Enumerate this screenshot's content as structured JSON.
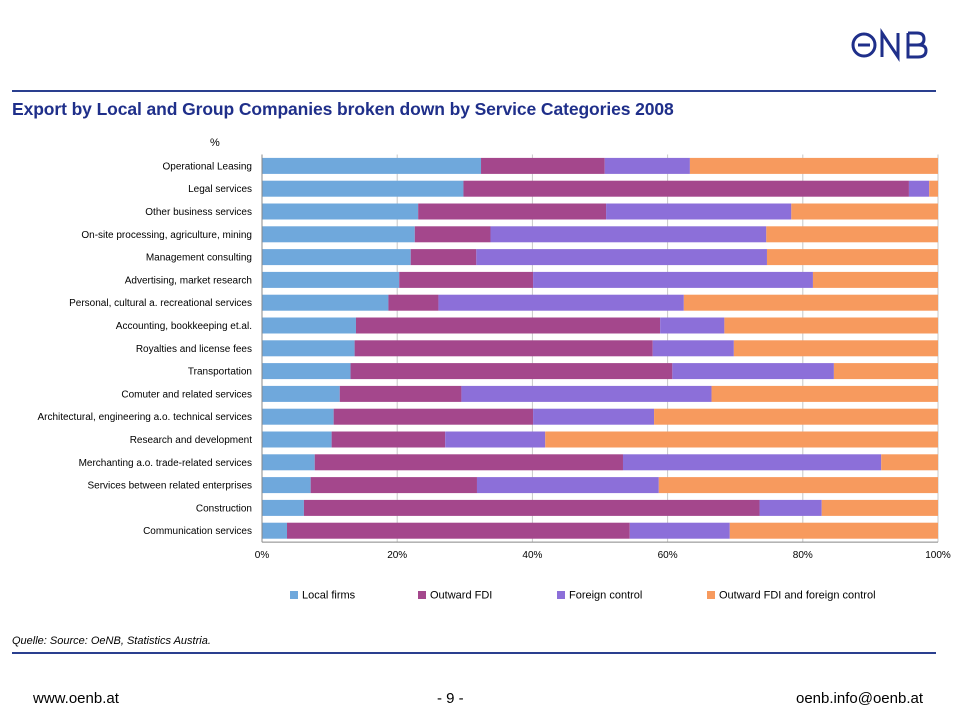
{
  "header": {
    "logo_text": "ONB",
    "title": "Export by Local and Group Companies broken down by Service Categories 2008"
  },
  "colors": {
    "rule": "#2a3f8f",
    "title": "#1f2f8a",
    "series": [
      "#6fa8dc",
      "#a4478c",
      "#8c6fd9",
      "#f79a5e"
    ]
  },
  "chart_data": {
    "type": "bar",
    "orientation": "horizontal",
    "stacked": "percent",
    "ylabel": "%",
    "xlim": [
      0,
      100
    ],
    "x_ticks": [
      "0%",
      "20%",
      "40%",
      "60%",
      "80%",
      "100%"
    ],
    "grid": true,
    "legend_position": "bottom",
    "categories": [
      "Operational Leasing",
      "Legal services",
      "Other business services",
      "On-site processing, agriculture, mining",
      "Management consulting",
      "Advertising, market research",
      "Personal, cultural a. recreational services",
      "Accounting, bookkeeping et.al.",
      "Royalties and license fees",
      "Transportation",
      "Comuter and related services",
      "Architectural, engineering a.o. technical services",
      "Research and development",
      "Merchanting a.o. trade-related services",
      "Services between related enterprises",
      "Construction",
      "Communication services"
    ],
    "series": [
      {
        "name": "Local firms",
        "values": [
          32.4,
          29.8,
          23.1,
          22.6,
          22.0,
          20.3,
          18.7,
          13.9,
          13.7,
          13.1,
          11.5,
          10.6,
          10.3,
          7.8,
          7.2,
          6.2,
          3.7
        ]
      },
      {
        "name": "Outward FDI",
        "values": [
          18.3,
          65.9,
          27.8,
          11.2,
          9.7,
          19.8,
          7.4,
          45.0,
          44.1,
          47.6,
          18.0,
          29.5,
          16.8,
          45.6,
          24.6,
          67.4,
          50.7
        ]
      },
      {
        "name": "Foreign control",
        "values": [
          12.6,
          3.0,
          27.4,
          40.8,
          43.0,
          41.4,
          36.3,
          9.5,
          12.0,
          23.9,
          37.0,
          17.9,
          14.8,
          38.2,
          26.9,
          9.2,
          14.8
        ]
      },
      {
        "name": "Outward FDI and foreign control",
        "values": [
          36.7,
          1.3,
          21.7,
          25.4,
          25.3,
          18.5,
          37.6,
          31.6,
          30.2,
          15.4,
          33.5,
          42.0,
          58.1,
          8.4,
          41.3,
          17.2,
          30.8
        ]
      }
    ]
  },
  "source": "Quelle: Source: OeNB, Statistics Austria.",
  "footer": {
    "left": "www.oenb.at",
    "center": "- 9 -",
    "right": "oenb.info@oenb.at"
  }
}
